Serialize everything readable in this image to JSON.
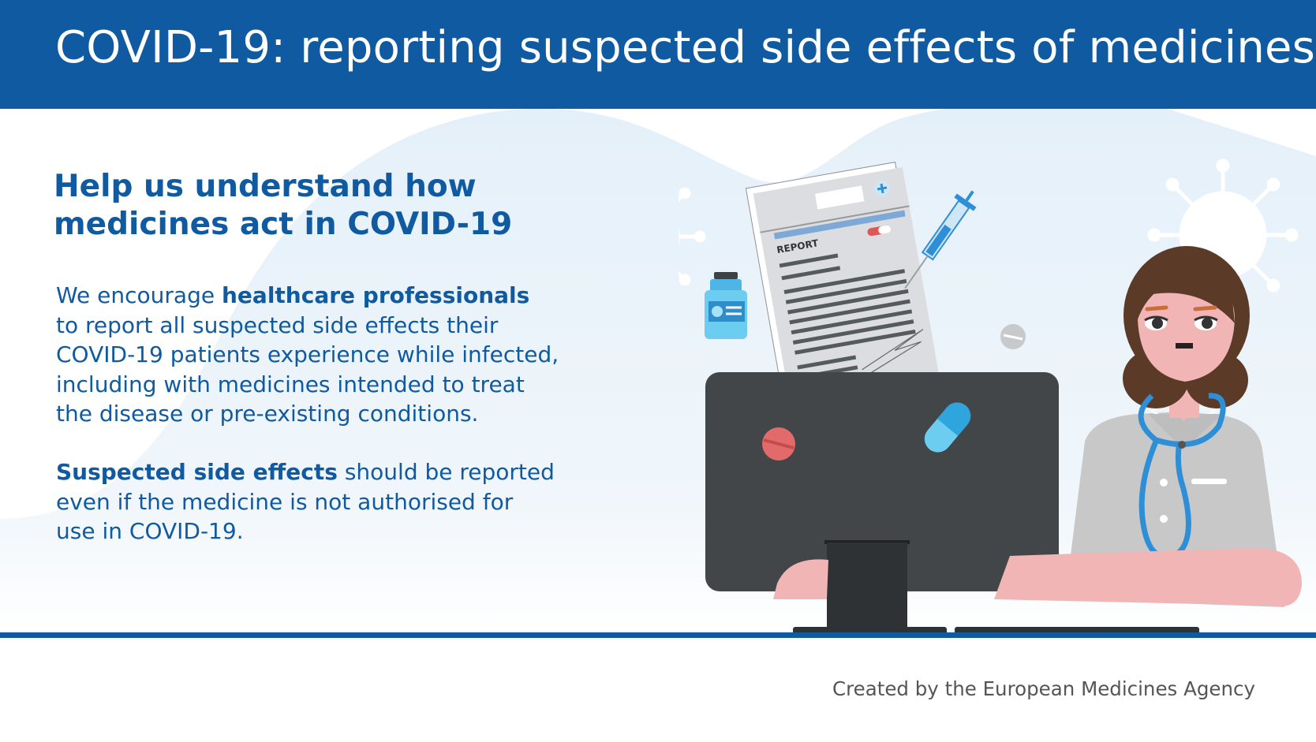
{
  "banner": {
    "title": "COVID-19: reporting suspected side effects of medicines"
  },
  "main": {
    "heading_line1": "Help us understand how",
    "heading_line2": "medicines act in COVID-19",
    "paragraph1": {
      "l1_pre": "We encourage ",
      "l1_bold": "healthcare professionals",
      "l2": "to report all suspected side effects their",
      "l3": "COVID-19 patients experience while infected,",
      "l4": "including with medicines intended to treat",
      "l5": "the disease or pre-existing conditions."
    },
    "paragraph2": {
      "l1_bold": "Suspected side effects",
      "l1_rest": " should be reported",
      "l2": "even if the medicine is not authorised for",
      "l3": "use in COVID-19."
    }
  },
  "illustration": {
    "report_label": "REPORT"
  },
  "footer": {
    "credit": "Created by the European Medicines Agency"
  },
  "colors": {
    "brand_blue": "#0f5aa0",
    "light_blue_bg": "#e9f3fa",
    "monitor": "#434649",
    "scrubs": "#c9c9c9",
    "hair": "#5b3a28",
    "skin": "#f2b5b5",
    "stethoscope": "#2f8fd6"
  },
  "icons": [
    "virus-icon",
    "medicine-bottle-icon",
    "syringe-icon",
    "pill-icon",
    "capsule-icon",
    "report-document-icon",
    "doctor-figure",
    "computer-monitor-icon"
  ]
}
